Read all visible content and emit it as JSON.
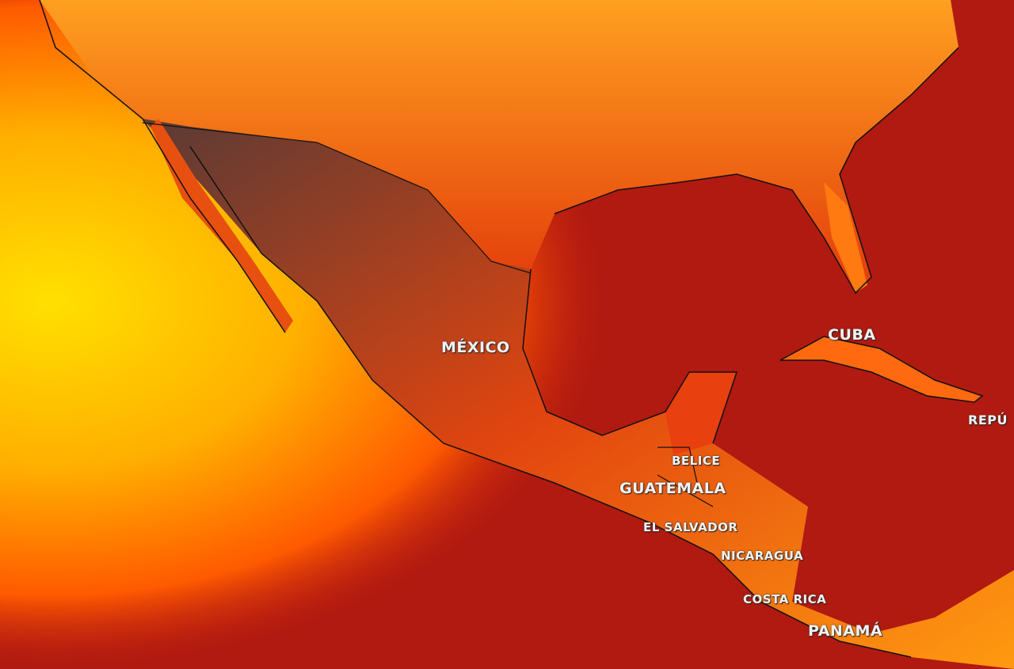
{
  "map": {
    "palette": {
      "hot_ocean": "#a8140e",
      "pacific_warm": "#f5c400",
      "land_hot": "#ff8a00",
      "land_highland": "#4a3a3a",
      "border": "#111111"
    },
    "labels": {
      "mexico": "MÉXICO",
      "cuba": "CUBA",
      "republica": "REPÚ",
      "belice": "BELICE",
      "guatemala": "GUATEMALA",
      "el_salvador": "EL SALVADOR",
      "nicaragua": "NICARAGUA",
      "costa_rica": "COSTA RICA",
      "panama": "PANAMÁ"
    }
  }
}
